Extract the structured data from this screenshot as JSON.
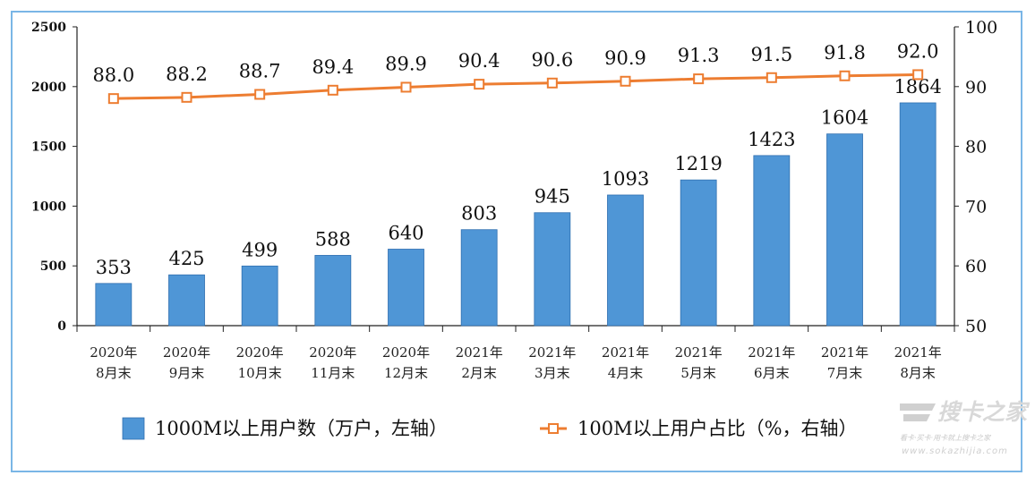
{
  "chart_data": {
    "type": "bar",
    "categories": [
      [
        "2020年",
        "8月末"
      ],
      [
        "2020年",
        "9月末"
      ],
      [
        "2020年",
        "10月末"
      ],
      [
        "2020年",
        "11月末"
      ],
      [
        "2020年",
        "12月末"
      ],
      [
        "2021年",
        "2月末"
      ],
      [
        "2021年",
        "3月末"
      ],
      [
        "2021年",
        "4月末"
      ],
      [
        "2021年",
        "5月末"
      ],
      [
        "2021年",
        "6月末"
      ],
      [
        "2021年",
        "7月末"
      ],
      [
        "2021年",
        "8月末"
      ]
    ],
    "series": [
      {
        "name": "1000M以上用户数（万户，左轴）",
        "type": "bar",
        "axis": "left",
        "color": "#4f96d6",
        "values": [
          353,
          425,
          499,
          588,
          640,
          803,
          945,
          1093,
          1219,
          1423,
          1604,
          1864
        ],
        "labels": [
          "353",
          "425",
          "499",
          "588",
          "640",
          "803",
          "945",
          "1093",
          "1219",
          "1423",
          "1604",
          "1864"
        ]
      },
      {
        "name": "100M以上用户占比（%，右轴）",
        "type": "line",
        "axis": "right",
        "color": "#ed7d31",
        "values": [
          88.0,
          88.2,
          88.7,
          89.4,
          89.9,
          90.4,
          90.6,
          90.9,
          91.3,
          91.5,
          91.8,
          92.0
        ],
        "labels": [
          "88.0",
          "88.2",
          "88.7",
          "89.4",
          "89.9",
          "90.4",
          "90.6",
          "90.9",
          "91.3",
          "91.5",
          "91.8",
          "92.0"
        ]
      }
    ],
    "y_left": {
      "range": [
        0,
        2500
      ],
      "ticks": [
        "0",
        "500",
        "1000",
        "1500",
        "2000",
        "2500"
      ]
    },
    "y_right": {
      "range": [
        50,
        100
      ],
      "ticks": [
        "50",
        "60",
        "70",
        "80",
        "90",
        "100"
      ]
    },
    "grid": false,
    "legend_position": "bottom"
  },
  "watermark": {
    "logo_text": "搜卡之家",
    "slogan": "看卡·买卡·用卡就上搜卡之家",
    "url": "www.sokazhijia.com"
  }
}
